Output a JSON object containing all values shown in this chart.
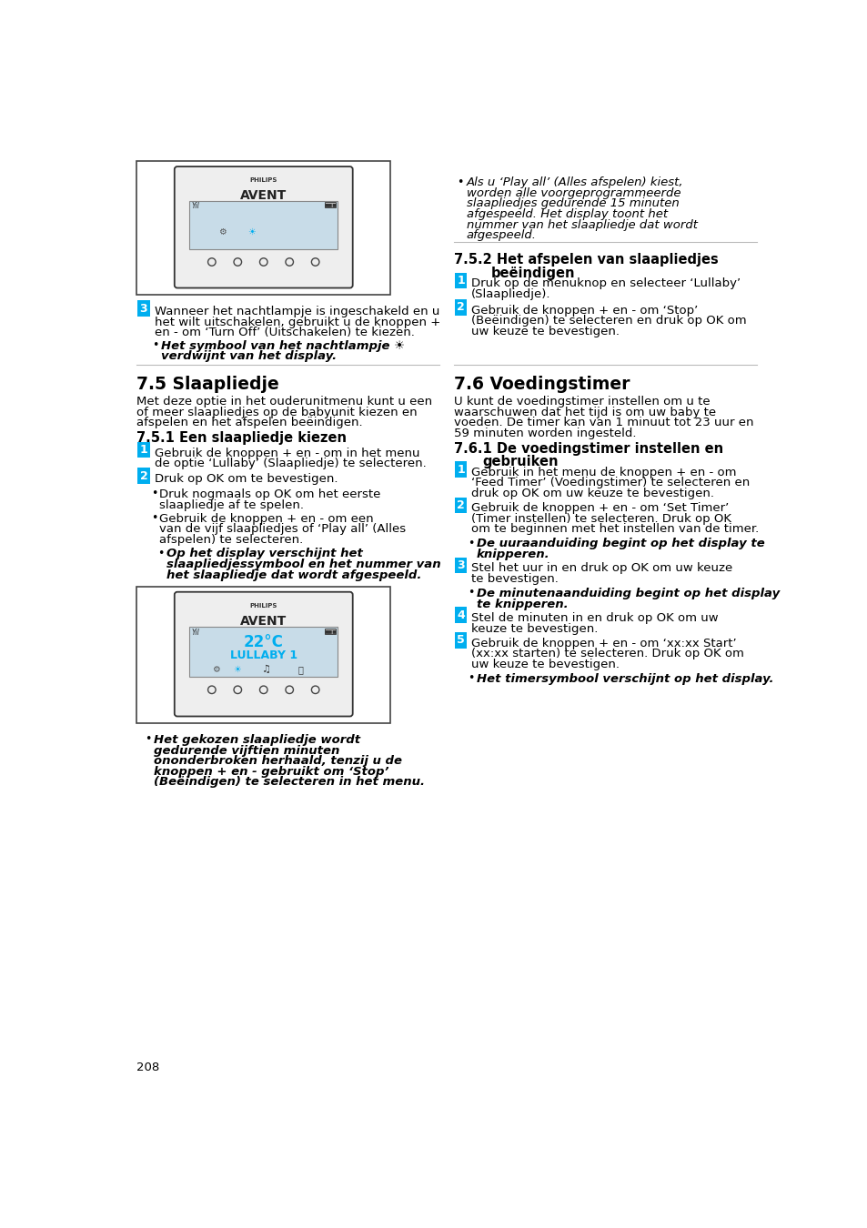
{
  "page_number": "208",
  "bg_color": "#ffffff",
  "text_color": "#000000",
  "blue_color": "#00aeef",
  "section_75_title": "7.5 Slaapliedje",
  "section_75_body": [
    "Met deze optie in het ouderunitmenu kunt u een",
    "of meer slaapliedjes op de babyunit kiezen en",
    "afspelen en het afspelen beëindigen."
  ],
  "section_751_title": "7.5.1 Een slaapliedje kiezen",
  "section_751_items": [
    {
      "num": "1",
      "text": [
        "Gebruik de knoppen + en - om in het menu",
        "de optie ‘Lullaby’ (Slaapliedje) te selecteren."
      ]
    },
    {
      "num": "2",
      "text": [
        "Druk op OK om te bevestigen."
      ]
    }
  ],
  "section_751_bullets": [
    [
      "Druk nogmaals op OK om het eerste",
      "slaapliedje af te spelen."
    ],
    [
      "Gebruik de knoppen + en - om een",
      "van de vijf slaapliedjes of ‘Play all’ (Alles",
      "afspelen) te selecteren."
    ]
  ],
  "section_751_italic_bullet": [
    "Op het display verschijnt het",
    "slaapliedjessymbool en het nummer van",
    "het slaapliedje dat wordt afgespeeld."
  ],
  "section_752_title_line1": "7.5.2 Het afspelen van slaapliedjes",
  "section_752_title_line2": "beëindigen",
  "section_752_items": [
    {
      "num": "1",
      "text": [
        "Druk op de menuknop en selecteer ‘Lullaby’",
        "(Slaapliedje)."
      ]
    },
    {
      "num": "2",
      "text": [
        "Gebruik de knoppen + en - om ‘Stop’",
        "(Beëindigen) te selecteren en druk op OK om",
        "uw keuze te bevestigen."
      ]
    }
  ],
  "section_76_title": "7.6 Voedingstimer",
  "section_76_body": [
    "U kunt de voedingstimer instellen om u te",
    "waarschuwen dat het tijd is om uw baby te",
    "voeden. De timer kan van 1 minuut tot 23 uur en",
    "59 minuten worden ingesteld."
  ],
  "section_761_title_line1": "7.6.1 De voedingstimer instellen en",
  "section_761_title_line2": "gebruiken",
  "section_761_items": [
    {
      "num": "1",
      "text": [
        "Gebruik in het menu de knoppen + en - om",
        "‘Feed Timer’ (Voedingstimer) te selecteren en",
        "druk op OK om uw keuze te bevestigen."
      ],
      "italic_after": null
    },
    {
      "num": "2",
      "text": [
        "Gebruik de knoppen + en - om ‘Set Timer’",
        "(Timer instellen) te selecteren. Druk op OK",
        "om te beginnen met het instellen van de timer."
      ],
      "italic_after": [
        "De uuraanduiding begint op het display te",
        "knipperen."
      ]
    },
    {
      "num": "3",
      "text": [
        "Stel het uur in en druk op OK om uw keuze",
        "te bevestigen."
      ],
      "italic_after": [
        "De minutenaanduiding begint op het display",
        "te knipperen."
      ]
    },
    {
      "num": "4",
      "text": [
        "Stel de minuten in en druk op OK om uw",
        "keuze te bevestigen."
      ],
      "italic_after": null
    },
    {
      "num": "5",
      "text": [
        "Gebruik de knoppen + en - om ‘xx:xx Start’",
        "(xx:xx starten) te selecteren. Druk op OK om",
        "uw keuze te bevestigen."
      ],
      "italic_after": [
        "Het timersymbool verschijnt op het display."
      ]
    }
  ],
  "top_bullet_italic": [
    "Als u ‘Play all’ (Alles afspelen) kiest,",
    "worden alle voorgeprogrammeerde",
    "slaapliedjes gedurende 15 minuten",
    "afgespeeld. Het display toont het",
    "nummer van het slaapliedje dat wordt",
    "afgespeeld."
  ],
  "step3_num": "3",
  "step3_lines": [
    "Wanneer het nachtlampje is ingeschakeld en u",
    "het wilt uitschakelen, gebruikt u de knoppen +",
    "en - om ‘Turn Off’ (Uitschakelen) te kiezen."
  ],
  "step3_italic": [
    "Het symbool van het nachtlampje ☀",
    "verdwijnt van het display."
  ],
  "bottom_italic_bullet": [
    "Het gekozen slaapliedje wordt",
    "gedurende vijftien minuten",
    "ononderbroken herhaald, tenzij u de",
    "knoppen + en - gebruikt om ‘Stop’",
    "(Beëindigen) te selecteren in het menu."
  ]
}
